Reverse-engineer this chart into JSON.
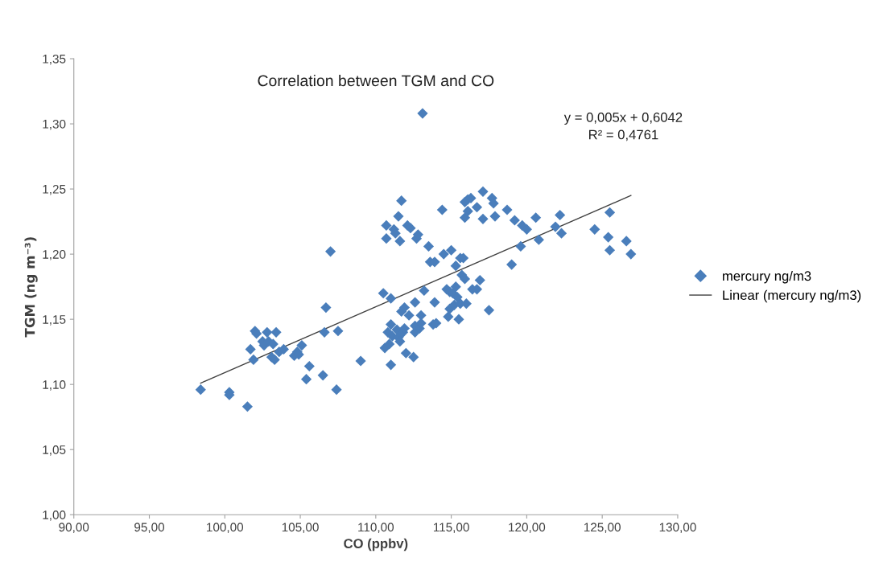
{
  "chart_data": {
    "type": "scatter",
    "title": "Correlation between TGM and CO",
    "xlabel": "CO (ppbv)",
    "ylabel": "TGM (ng m⁻³)",
    "annotations": [
      "y = 0,005x + 0,6042\nR² = 0,4761"
    ],
    "xlim": [
      90,
      130
    ],
    "ylim": [
      1.0,
      1.35
    ],
    "xticks": [
      {
        "value": 90,
        "label": "90,00"
      },
      {
        "value": 95,
        "label": "95,00"
      },
      {
        "value": 100,
        "label": "100,00"
      },
      {
        "value": 105,
        "label": "105,00"
      },
      {
        "value": 110,
        "label": "110,00"
      },
      {
        "value": 115,
        "label": "115,00"
      },
      {
        "value": 120,
        "label": "120,00"
      },
      {
        "value": 125,
        "label": "125,00"
      },
      {
        "value": 130,
        "label": "130,00"
      }
    ],
    "yticks": [
      {
        "value": 1.0,
        "label": "1,00"
      },
      {
        "value": 1.05,
        "label": "1,05"
      },
      {
        "value": 1.1,
        "label": "1,10"
      },
      {
        "value": 1.15,
        "label": "1,15"
      },
      {
        "value": 1.2,
        "label": "1,20"
      },
      {
        "value": 1.25,
        "label": "1,25"
      },
      {
        "value": 1.3,
        "label": "1,30"
      },
      {
        "value": 1.35,
        "label": "1,35"
      }
    ],
    "grid": false,
    "legend": "right",
    "marker": "diamond",
    "series": [
      {
        "name": "mercury ng/m3",
        "color": "#4a7ebb",
        "x": [
          98.4,
          100.3,
          100.3,
          101.5,
          101.7,
          101.9,
          102.0,
          102.1,
          102.5,
          102.6,
          102.8,
          102.9,
          103.1,
          103.2,
          103.3,
          103.4,
          103.6,
          103.9,
          104.6,
          104.8,
          104.9,
          105.1,
          105.4,
          105.6,
          106.5,
          106.6,
          106.7,
          107.0,
          107.4,
          107.5,
          109.0,
          110.5,
          110.6,
          110.7,
          110.7,
          110.8,
          110.9,
          111.0,
          111.0,
          111.0,
          111.1,
          111.2,
          111.3,
          111.4,
          111.5,
          111.5,
          111.6,
          111.6,
          111.7,
          111.7,
          111.8,
          111.9,
          111.9,
          112.0,
          112.1,
          112.2,
          112.3,
          112.5,
          112.6,
          112.6,
          112.6,
          112.7,
          112.8,
          112.9,
          113.0,
          113.0,
          113.1,
          113.2,
          113.5,
          113.6,
          113.8,
          113.9,
          113.9,
          114.0,
          114.4,
          114.5,
          114.7,
          114.8,
          114.9,
          114.9,
          115.0,
          115.1,
          115.2,
          115.3,
          115.3,
          115.4,
          115.5,
          115.6,
          115.6,
          115.7,
          115.8,
          115.9,
          115.9,
          115.9,
          116.0,
          116.1,
          116.1,
          116.3,
          116.4,
          116.7,
          116.7,
          116.9,
          117.1,
          117.1,
          117.5,
          117.7,
          117.8,
          117.9,
          118.7,
          119.0,
          119.2,
          119.6,
          119.7,
          120.0,
          120.6,
          120.8,
          121.9,
          122.2,
          122.3,
          124.5,
          125.4,
          125.5,
          125.5,
          126.6,
          126.9
        ],
        "values": [
          1.096,
          1.094,
          1.092,
          1.083,
          1.127,
          1.119,
          1.141,
          1.139,
          1.133,
          1.13,
          1.14,
          1.133,
          1.121,
          1.131,
          1.119,
          1.14,
          1.125,
          1.127,
          1.122,
          1.125,
          1.123,
          1.13,
          1.104,
          1.114,
          1.107,
          1.14,
          1.159,
          1.202,
          1.096,
          1.141,
          1.118,
          1.17,
          1.128,
          1.222,
          1.212,
          1.14,
          1.131,
          1.166,
          1.146,
          1.115,
          1.137,
          1.219,
          1.216,
          1.142,
          1.136,
          1.229,
          1.133,
          1.21,
          1.241,
          1.156,
          1.14,
          1.159,
          1.143,
          1.124,
          1.222,
          1.153,
          1.22,
          1.121,
          1.14,
          1.163,
          1.145,
          1.212,
          1.215,
          1.143,
          1.153,
          1.147,
          1.308,
          1.172,
          1.206,
          1.194,
          1.146,
          1.163,
          1.194,
          1.147,
          1.234,
          1.2,
          1.173,
          1.152,
          1.171,
          1.158,
          1.203,
          1.17,
          1.161,
          1.191,
          1.175,
          1.167,
          1.15,
          1.197,
          1.162,
          1.184,
          1.197,
          1.24,
          1.181,
          1.228,
          1.162,
          1.233,
          1.242,
          1.243,
          1.173,
          1.236,
          1.173,
          1.18,
          1.248,
          1.227,
          1.157,
          1.243,
          1.239,
          1.229,
          1.234,
          1.192,
          1.226,
          1.206,
          1.222,
          1.219,
          1.228,
          1.211,
          1.221,
          1.23,
          1.216,
          1.219,
          1.213,
          1.232,
          1.203,
          1.21,
          1.2
        ]
      },
      {
        "name": "Linear (mercury ng/m3)",
        "type": "line",
        "color": "#404040",
        "marker": "none",
        "line_style": "solid",
        "x": [
          98.4,
          126.9
        ],
        "values": [
          1.101,
          1.245
        ]
      }
    ]
  }
}
